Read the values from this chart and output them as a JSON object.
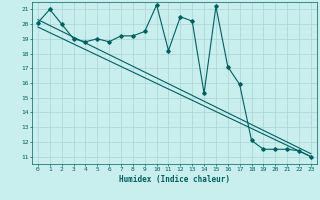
{
  "title": "",
  "xlabel": "Humidex (Indice chaleur)",
  "ylabel": "",
  "background_color": "#c8eeee",
  "grid_color": "#aad4d4",
  "line_color": "#006060",
  "xlim": [
    -0.5,
    23.5
  ],
  "ylim": [
    10.5,
    21.5
  ],
  "yticks": [
    11,
    12,
    13,
    14,
    15,
    16,
    17,
    18,
    19,
    20,
    21
  ],
  "xticks": [
    0,
    1,
    2,
    3,
    4,
    5,
    6,
    7,
    8,
    9,
    10,
    11,
    12,
    13,
    14,
    15,
    16,
    17,
    18,
    19,
    20,
    21,
    22,
    23
  ],
  "line1_x": [
    0,
    1,
    2,
    3,
    4,
    5,
    6,
    7,
    8,
    9,
    10,
    11,
    12,
    13,
    14,
    15,
    16,
    17,
    18,
    19,
    20,
    21,
    22,
    23
  ],
  "line1_y": [
    20.1,
    21.0,
    20.0,
    19.0,
    18.8,
    19.0,
    18.8,
    19.2,
    19.2,
    19.5,
    21.3,
    18.2,
    20.5,
    20.2,
    15.3,
    21.2,
    17.1,
    15.9,
    12.1,
    11.5,
    11.5,
    11.5,
    11.4,
    11.0
  ],
  "line2_x": [
    0,
    23
  ],
  "line2_y": [
    19.8,
    11.0
  ],
  "line3_x": [
    0,
    23
  ],
  "line3_y": [
    20.3,
    11.2
  ]
}
